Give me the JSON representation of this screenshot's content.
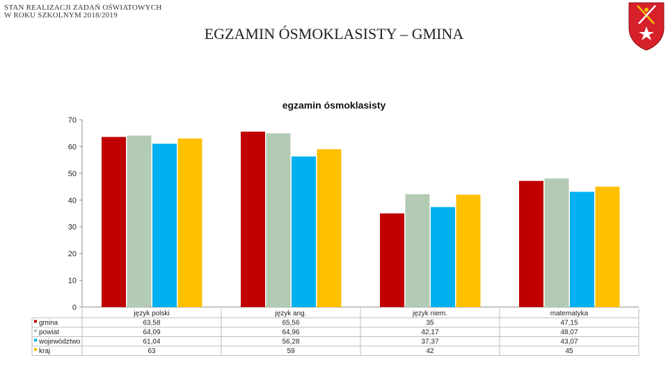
{
  "header": {
    "line1": "STAN REALIZACJI ZADAŃ OŚWIATOWYCH",
    "line2": "W ROKU SZKOLNYM 2018/2019",
    "title": "EGZAMIN ÓSMOKLASISTY – GMINA"
  },
  "crest": {
    "icon": "coat-of-arms-icon",
    "shield_color": "#d6202a",
    "emblem_color": "#ffffff",
    "accent_color": "#f2c200"
  },
  "chart_data": {
    "type": "bar",
    "title": "egzamin ósmoklasisty",
    "categories": [
      "język polski",
      "język ang.",
      "język niem.",
      "matematyka"
    ],
    "series": [
      {
        "name": "gmina",
        "color": "#c00000",
        "values": [
          63.58,
          65.56,
          35,
          47.15
        ],
        "labels": [
          "63,58",
          "65,56",
          "35",
          "47,15"
        ]
      },
      {
        "name": "powiat",
        "color": "#b3cbb3",
        "values": [
          64.09,
          64.96,
          42.17,
          48.07
        ],
        "labels": [
          "64,09",
          "64,96",
          "42,17",
          "48,07"
        ]
      },
      {
        "name": "województwo",
        "color": "#00b0f0",
        "values": [
          61.04,
          56.28,
          37.37,
          43.07
        ],
        "labels": [
          "61,04",
          "56,28",
          "37,37",
          "43,07"
        ]
      },
      {
        "name": "kraj",
        "color": "#ffc000",
        "values": [
          63,
          59,
          42,
          45
        ],
        "labels": [
          "63",
          "59",
          "42",
          "45"
        ]
      }
    ],
    "yticks": [
      0,
      10,
      20,
      30,
      40,
      50,
      60,
      70
    ],
    "ylim": [
      0,
      70
    ],
    "grid": false,
    "legend": "data-table-below"
  }
}
